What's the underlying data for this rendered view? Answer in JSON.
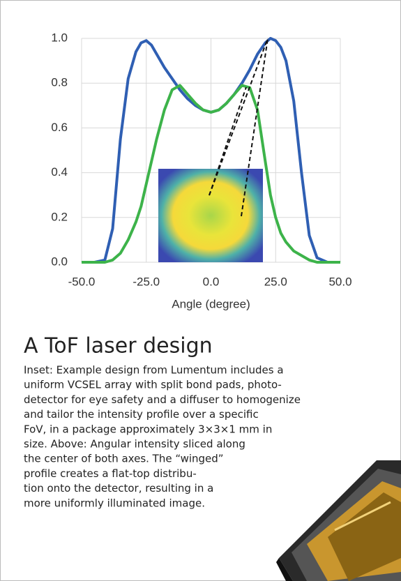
{
  "chart_data": {
    "type": "line",
    "x_label": "Angle (degree)",
    "x": [
      -50,
      -45,
      -41,
      -38,
      -35,
      -32,
      -29,
      -27,
      -25,
      -23,
      -21,
      -18,
      -15,
      -12,
      -9,
      -6,
      -3,
      0,
      3,
      6,
      9,
      12,
      15,
      18,
      21,
      23,
      25,
      27,
      29,
      32,
      35,
      38,
      41,
      45,
      50
    ],
    "series": [
      {
        "color": "#2f5fb3",
        "values": [
          0,
          0,
          0.01,
          0.15,
          0.55,
          0.82,
          0.94,
          0.98,
          0.99,
          0.97,
          0.93,
          0.87,
          0.82,
          0.77,
          0.73,
          0.7,
          0.68,
          0.67,
          0.68,
          0.71,
          0.75,
          0.8,
          0.86,
          0.93,
          0.98,
          1.0,
          0.99,
          0.96,
          0.9,
          0.72,
          0.4,
          0.12,
          0.02,
          0,
          0
        ]
      },
      {
        "color": "#3db34a",
        "values": [
          0,
          0,
          0,
          0.01,
          0.04,
          0.1,
          0.18,
          0.25,
          0.35,
          0.45,
          0.55,
          0.68,
          0.77,
          0.79,
          0.75,
          0.71,
          0.68,
          0.67,
          0.68,
          0.71,
          0.75,
          0.79,
          0.78,
          0.68,
          0.45,
          0.3,
          0.2,
          0.13,
          0.09,
          0.05,
          0.03,
          0.01,
          0,
          0,
          0
        ]
      }
    ],
    "xlim": [
      -50,
      50
    ],
    "xticks": [
      {
        "value": -50,
        "label": "-50.0"
      },
      {
        "value": -25,
        "label": "-25.0"
      },
      {
        "value": 0,
        "label": "0.0"
      },
      {
        "value": 25,
        "label": "25.0"
      },
      {
        "value": 50,
        "label": "50.0"
      }
    ],
    "ylim": [
      0,
      1
    ],
    "yticks": [
      {
        "value": 0,
        "label": "0.0"
      },
      0.2,
      0.4,
      0.6,
      0.8,
      {
        "value": 1,
        "label": "1.0"
      }
    ],
    "grid": true
  },
  "caption": {
    "title": "A ToF laser design",
    "lines": [
      "Inset: Example design from Lumentum includes a",
      "uniform VCSEL array with split bond pads, photo-",
      "detector for eye safety and a diffuser to homogenize",
      "and tailor the intensity profile over a specific",
      "FoV, in a package approximately 3×3×1 mm in",
      "size. Above: Angular intensity sliced along",
      "the center of both axes. The “winged”",
      "profile creates a flat-top distribu-",
      "tion onto the detector, resulting in a",
      "more uniformly illuminated image."
    ]
  }
}
